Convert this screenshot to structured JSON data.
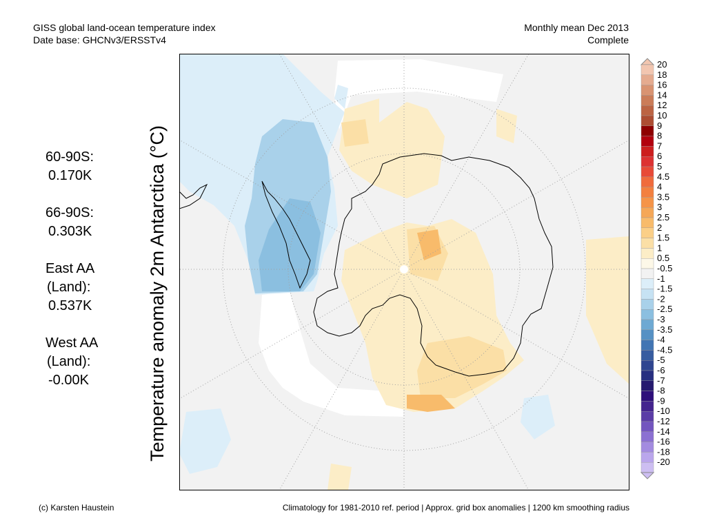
{
  "header": {
    "title": "GISS global land-ocean temperature index",
    "subtitle": "Date base: GHCNv3/ERSSTv4",
    "period": "Monthly mean Dec 2013",
    "status": "Complete"
  },
  "y_label": "Temperature anomaly 2m Antarctica (°C)",
  "stats": [
    {
      "lines": [
        "60-90S:",
        "0.170K"
      ]
    },
    {
      "lines": [
        "66-90S:",
        "0.303K"
      ]
    },
    {
      "lines": [
        "East AA",
        "(Land):",
        "0.537K"
      ]
    },
    {
      "lines": [
        "West AA",
        "(Land):",
        "-0.00K"
      ]
    }
  ],
  "colorbar": {
    "labels": [
      "20",
      "18",
      "16",
      "14",
      "12",
      "10",
      "9",
      "8",
      "7",
      "6",
      "5",
      "4.5",
      "4",
      "3.5",
      "3",
      "2.5",
      "2",
      "1.5",
      "1",
      "0.5",
      "-0.5",
      "-1",
      "-1.5",
      "-2",
      "-2.5",
      "-3",
      "-3.5",
      "-4",
      "-4.5",
      "-5",
      "-6",
      "-7",
      "-8",
      "-9",
      "-10",
      "-12",
      "-14",
      "-16",
      "-18",
      "-20"
    ],
    "colors": [
      "#f2c6b0",
      "#e5ab8f",
      "#d99371",
      "#cb7c58",
      "#bc6443",
      "#ad4d32",
      "#8e0000",
      "#b2000d",
      "#cc1e1e",
      "#dd3232",
      "#e84a37",
      "#f06b3c",
      "#f3803f",
      "#f59448",
      "#f5a757",
      "#f8bb6b",
      "#fbcf87",
      "#fbdfa6",
      "#fcedc7",
      "#fdf8e8",
      "#f2f2f2",
      "#dceef9",
      "#c6e2f3",
      "#a9d1ea",
      "#8bbfe0",
      "#6ea9d3",
      "#5691c4",
      "#4275b3",
      "#375ca0",
      "#2f4590",
      "#272f80",
      "#261a6f",
      "#2e0f7a",
      "#44248e",
      "#5b3ca7",
      "#7355bf",
      "#8b70d2",
      "#a38be0",
      "#baa6ec",
      "#cdbef2"
    ]
  },
  "footer": {
    "credit": "(c) Karsten Haustein",
    "note": "Climatology for 1981-2010 ref. period | Approx. grid box anomalies | 1200 km smoothing radius"
  }
}
